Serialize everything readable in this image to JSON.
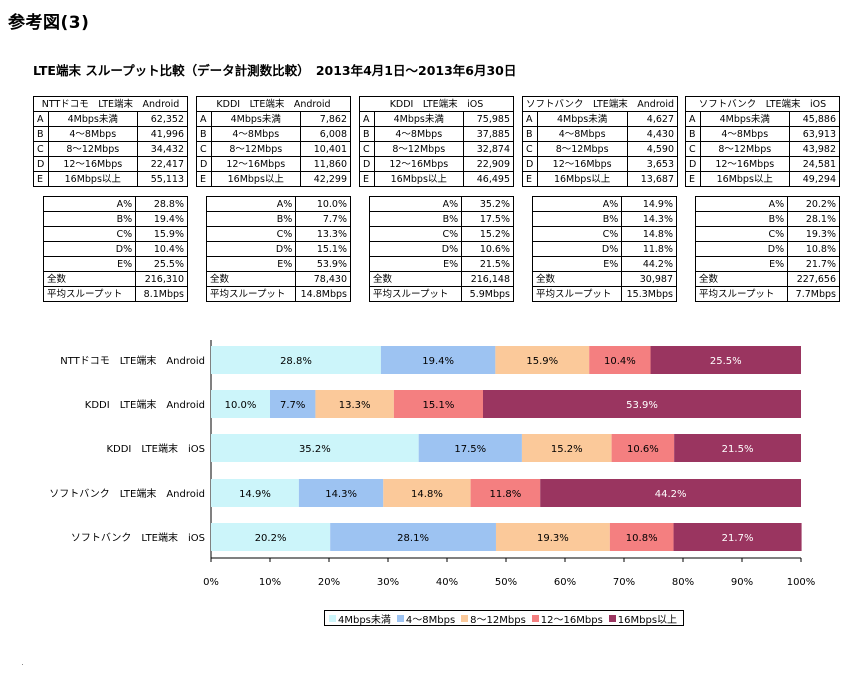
{
  "page_heading": "参考図(3)",
  "chart_title": "LTE端末 スループット比較（データ計測数比較）　2013年4月1日～2013年6月30日",
  "tables": [
    {
      "header": "NTTドコモ　LTE端末　Android",
      "rows": [
        {
          "letter": "A",
          "range": "4Mbps未満",
          "count": "62,352"
        },
        {
          "letter": "B",
          "range": "4～8Mbps",
          "count": "41,996"
        },
        {
          "letter": "C",
          "range": "8～12Mbps",
          "count": "34,432"
        },
        {
          "letter": "D",
          "range": "12～16Mbps",
          "count": "22,417"
        },
        {
          "letter": "E",
          "range": "16Mbps以上",
          "count": "55,113"
        }
      ],
      "pct": [
        {
          "label": "A%",
          "value": "28.8%"
        },
        {
          "label": "B%",
          "value": "19.4%"
        },
        {
          "label": "C%",
          "value": "15.9%"
        },
        {
          "label": "D%",
          "value": "10.4%"
        },
        {
          "label": "E%",
          "value": "25.5%"
        }
      ],
      "total_label": "全数",
      "total": "216,310",
      "avg_label": "平均スループット",
      "avg": "8.1Mbps"
    },
    {
      "header": "KDDI　LTE端末　Android",
      "rows": [
        {
          "letter": "A",
          "range": "4Mbps未満",
          "count": "7,862"
        },
        {
          "letter": "B",
          "range": "4～8Mbps",
          "count": "6,008"
        },
        {
          "letter": "C",
          "range": "8～12Mbps",
          "count": "10,401"
        },
        {
          "letter": "D",
          "range": "12～16Mbps",
          "count": "11,860"
        },
        {
          "letter": "E",
          "range": "16Mbps以上",
          "count": "42,299"
        }
      ],
      "pct": [
        {
          "label": "A%",
          "value": "10.0%"
        },
        {
          "label": "B%",
          "value": "7.7%"
        },
        {
          "label": "C%",
          "value": "13.3%"
        },
        {
          "label": "D%",
          "value": "15.1%"
        },
        {
          "label": "E%",
          "value": "53.9%"
        }
      ],
      "total_label": "全数",
      "total": "78,430",
      "avg_label": "平均スループット",
      "avg": "14.8Mbps"
    },
    {
      "header": "KDDI　LTE端末　iOS",
      "rows": [
        {
          "letter": "A",
          "range": "4Mbps未満",
          "count": "75,985"
        },
        {
          "letter": "B",
          "range": "4～8Mbps",
          "count": "37,885"
        },
        {
          "letter": "C",
          "range": "8～12Mbps",
          "count": "32,874"
        },
        {
          "letter": "D",
          "range": "12～16Mbps",
          "count": "22,909"
        },
        {
          "letter": "E",
          "range": "16Mbps以上",
          "count": "46,495"
        }
      ],
      "pct": [
        {
          "label": "A%",
          "value": "35.2%"
        },
        {
          "label": "B%",
          "value": "17.5%"
        },
        {
          "label": "C%",
          "value": "15.2%"
        },
        {
          "label": "D%",
          "value": "10.6%"
        },
        {
          "label": "E%",
          "value": "21.5%"
        }
      ],
      "total_label": "全数",
      "total": "216,148",
      "avg_label": "平均スループット",
      "avg": "5.9Mbps"
    },
    {
      "header": "ソフトバンク　LTE端末　Android",
      "rows": [
        {
          "letter": "A",
          "range": "4Mbps未満",
          "count": "4,627"
        },
        {
          "letter": "B",
          "range": "4～8Mbps",
          "count": "4,430"
        },
        {
          "letter": "C",
          "range": "8～12Mbps",
          "count": "4,590"
        },
        {
          "letter": "D",
          "range": "12～16Mbps",
          "count": "3,653"
        },
        {
          "letter": "E",
          "range": "16Mbps以上",
          "count": "13,687"
        }
      ],
      "pct": [
        {
          "label": "A%",
          "value": "14.9%"
        },
        {
          "label": "B%",
          "value": "14.3%"
        },
        {
          "label": "C%",
          "value": "14.8%"
        },
        {
          "label": "D%",
          "value": "11.8%"
        },
        {
          "label": "E%",
          "value": "44.2%"
        }
      ],
      "total_label": "全数",
      "total": "30,987",
      "avg_label": "平均スループット",
      "avg": "15.3Mbps"
    },
    {
      "header": "ソフトバンク　LTE端末　iOS",
      "rows": [
        {
          "letter": "A",
          "range": "4Mbps未満",
          "count": "45,886"
        },
        {
          "letter": "B",
          "range": "4～8Mbps",
          "count": "63,913"
        },
        {
          "letter": "C",
          "range": "8～12Mbps",
          "count": "43,982"
        },
        {
          "letter": "D",
          "range": "12～16Mbps",
          "count": "24,581"
        },
        {
          "letter": "E",
          "range": "16Mbps以上",
          "count": "49,294"
        }
      ],
      "pct": [
        {
          "label": "A%",
          "value": "20.2%"
        },
        {
          "label": "B%",
          "value": "28.1%"
        },
        {
          "label": "C%",
          "value": "19.3%"
        },
        {
          "label": "D%",
          "value": "10.8%"
        },
        {
          "label": "E%",
          "value": "21.7%"
        }
      ],
      "total_label": "全数",
      "total": "227,656",
      "avg_label": "平均スループット",
      "avg": "7.7Mbps"
    }
  ],
  "chart_data": {
    "type": "bar",
    "orientation": "horizontal",
    "stacked": "percent",
    "categories": [
      "NTTドコモ　LTE端末　Android",
      "KDDI　LTE端末　Android",
      "KDDI　LTE端末　iOS",
      "ソフトバンク　LTE端末　Android",
      "ソフトバンク　LTE端末　iOS"
    ],
    "series": [
      {
        "name": "4Mbps未満",
        "color": "#ccf5fa",
        "values": [
          28.8,
          10.0,
          35.2,
          14.9,
          20.2
        ]
      },
      {
        "name": "4～8Mbps",
        "color": "#9dc3f2",
        "values": [
          19.4,
          7.7,
          17.5,
          14.3,
          28.1
        ]
      },
      {
        "name": "8～12Mbps",
        "color": "#fbc99a",
        "values": [
          15.9,
          13.3,
          15.2,
          14.8,
          19.3
        ]
      },
      {
        "name": "12～16Mbps",
        "color": "#f47f80",
        "values": [
          10.4,
          15.1,
          10.6,
          11.8,
          10.8
        ]
      },
      {
        "name": "16Mbps以上",
        "color": "#9a3560",
        "values": [
          25.5,
          53.9,
          21.5,
          44.2,
          21.7
        ]
      }
    ],
    "xlim": [
      0,
      100
    ],
    "x_ticks": [
      "0%",
      "10%",
      "20%",
      "30%",
      "40%",
      "50%",
      "60%",
      "70%",
      "80%",
      "90%",
      "100%"
    ],
    "legend_position": "bottom",
    "grid": false
  }
}
